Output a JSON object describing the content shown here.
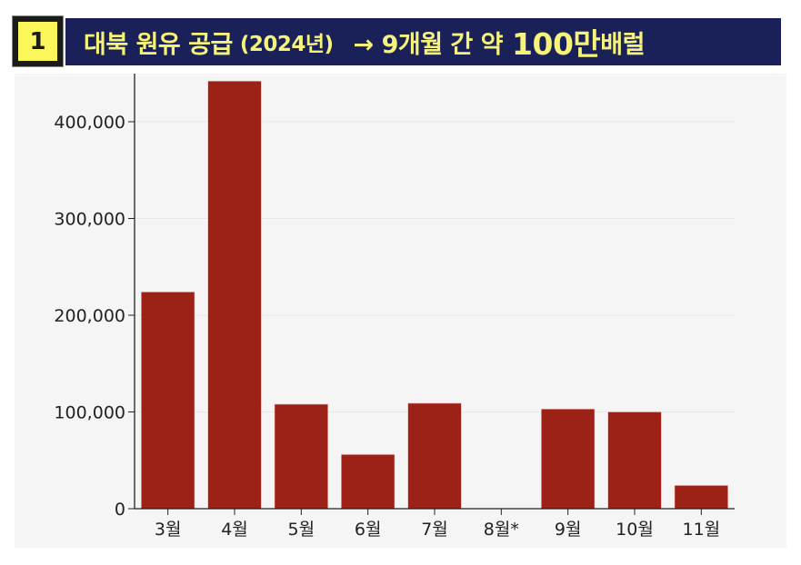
{
  "header": {
    "badge_number": "1",
    "title_main": "대북 원유 공급",
    "title_year": "(2024년)",
    "title_arrow_text": "→ 9개월 간 약",
    "title_big": "100만",
    "title_unit": "배럴"
  },
  "colors": {
    "bar": "#9c2116",
    "title_bg": "#1a2158",
    "title_text": "#f6f37a",
    "badge_bg": "#fbf65a",
    "panel_bg": "#f5f5f5"
  },
  "chart_data": {
    "type": "bar",
    "title": "대북 원유 공급 (2024년) → 9개월 간 약 100만배럴",
    "xlabel": "",
    "ylabel": "",
    "categories": [
      "3월",
      "4월",
      "5월",
      "6월",
      "7월",
      "8월*",
      "9월",
      "10월",
      "11월"
    ],
    "values": [
      224000,
      442000,
      108000,
      56000,
      109000,
      0,
      103000,
      100000,
      24000
    ],
    "ylim": [
      0,
      450000
    ],
    "yticks": [
      0,
      100000,
      200000,
      300000,
      400000
    ],
    "ytick_labels": [
      "0",
      "100,000",
      "200,000",
      "300,000",
      "400,000"
    ],
    "grid": true,
    "legend": null,
    "annotations": [
      "8월* (no bar shown)"
    ]
  }
}
